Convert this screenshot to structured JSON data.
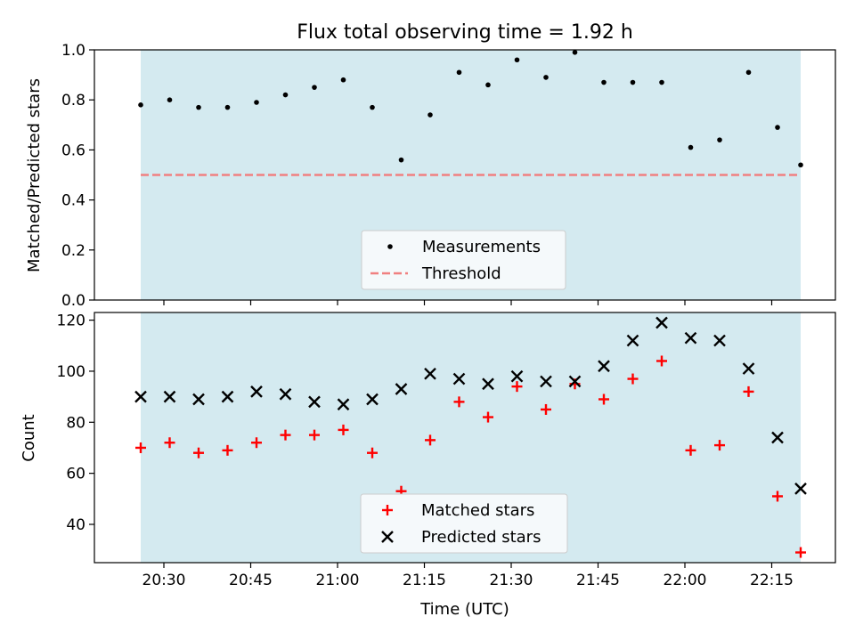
{
  "title": "Flux total observing time = 1.92 h",
  "colors": {
    "shade": "#d4eaf0",
    "measurement": "#000000",
    "threshold": "#f08080",
    "matched": "#ff0000",
    "predicted": "#000000"
  },
  "chart_data": [
    {
      "type": "scatter",
      "ylabel": "Matched/Predicted stars",
      "ylim": [
        0.0,
        1.0
      ],
      "yticks": [
        "0.0",
        "0.2",
        "0.4",
        "0.6",
        "0.8",
        "1.0"
      ],
      "shaded_span": [
        "20:26",
        "22:20"
      ],
      "x": [
        "20:26",
        "20:31",
        "20:36",
        "20:41",
        "20:46",
        "20:51",
        "20:56",
        "21:01",
        "21:06",
        "21:11",
        "21:16",
        "21:21",
        "21:26",
        "21:31",
        "21:36",
        "21:41",
        "21:46",
        "21:51",
        "21:56",
        "22:01",
        "22:06",
        "22:11",
        "22:16",
        "22:20"
      ],
      "series": [
        {
          "name": "Measurements",
          "marker": "dot",
          "values": [
            0.78,
            0.8,
            0.77,
            0.77,
            0.79,
            0.82,
            0.85,
            0.88,
            0.77,
            0.56,
            0.74,
            0.91,
            0.86,
            0.96,
            0.89,
            0.99,
            0.87,
            0.87,
            0.87,
            0.61,
            0.64,
            0.91,
            0.69,
            0.54
          ]
        }
      ],
      "threshold": {
        "name": "Threshold",
        "value": 0.5,
        "style": "dashed"
      },
      "legend": "bottom-center"
    },
    {
      "type": "scatter",
      "xlabel": "Time (UTC)",
      "ylabel": "Count",
      "ylim": [
        25,
        123
      ],
      "yticks": [
        "40",
        "60",
        "80",
        "100",
        "120"
      ],
      "xticks": [
        "20:30",
        "20:45",
        "21:00",
        "21:15",
        "21:30",
        "21:45",
        "22:00",
        "22:15"
      ],
      "shaded_span": [
        "20:26",
        "22:20"
      ],
      "x": [
        "20:26",
        "20:31",
        "20:36",
        "20:41",
        "20:46",
        "20:51",
        "20:56",
        "21:01",
        "21:06",
        "21:11",
        "21:16",
        "21:21",
        "21:26",
        "21:31",
        "21:36",
        "21:41",
        "21:46",
        "21:51",
        "21:56",
        "22:01",
        "22:06",
        "22:11",
        "22:16",
        "22:20"
      ],
      "series": [
        {
          "name": "Matched stars",
          "marker": "plus",
          "values": [
            70,
            72,
            68,
            69,
            72,
            75,
            75,
            77,
            68,
            53,
            73,
            88,
            82,
            94,
            85,
            95,
            89,
            97,
            104,
            69,
            71,
            92,
            51,
            29
          ]
        },
        {
          "name": "Predicted stars",
          "marker": "x",
          "values": [
            90,
            90,
            89,
            90,
            92,
            91,
            88,
            87,
            89,
            93,
            99,
            97,
            95,
            98,
            96,
            96,
            102,
            112,
            119,
            113,
            112,
            101,
            74,
            54
          ]
        }
      ],
      "legend": "bottom-center"
    }
  ]
}
